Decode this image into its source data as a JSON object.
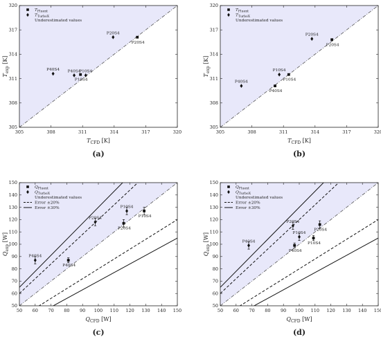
{
  "chart_data": [
    {
      "id": "a",
      "type": "scatter",
      "panel_label": "(a)",
      "xlabel": "T_CFD [K]",
      "ylabel": "T_exp [K]",
      "xlim": [
        305,
        320
      ],
      "ylim": [
        305,
        320
      ],
      "xticks": [
        "305",
        "308",
        "311",
        "314",
        "317",
        "320"
      ],
      "yticks": [
        "305",
        "308",
        "311",
        "314",
        "317",
        "320"
      ],
      "underestimated_region": true,
      "legend": {
        "position": "top-left",
        "entries": [
          {
            "marker": "square",
            "label": "T_Fluent"
          },
          {
            "marker": "diamond",
            "label": "T_TurboX"
          },
          {
            "marker": "shade",
            "label": "Underestimated values"
          }
        ]
      },
      "series": [
        {
          "name": "T_Fluent",
          "marker": "square",
          "points": [
            {
              "label": "P10S4",
              "x": 310.8,
              "y": 311.5
            },
            {
              "label": "P20S4",
              "x": 316.2,
              "y": 316.1
            }
          ]
        },
        {
          "name": "T_TurboX",
          "marker": "diamond",
          "points": [
            {
              "label": "P40S4",
              "x": 308.2,
              "y": 311.6
            },
            {
              "label": "P40S4",
              "x": 310.2,
              "y": 311.4
            },
            {
              "label": "P10S4",
              "x": 311.3,
              "y": 311.4
            },
            {
              "label": "P20S4",
              "x": 313.9,
              "y": 316.1
            }
          ]
        }
      ],
      "error_lines": []
    },
    {
      "id": "b",
      "type": "scatter",
      "panel_label": "(b)",
      "xlabel": "T_CFD [K]",
      "ylabel": "T_exp [K]",
      "xlim": [
        305,
        320
      ],
      "ylim": [
        305,
        320
      ],
      "xticks": [
        "305",
        "308",
        "311",
        "314",
        "317",
        "320"
      ],
      "yticks": [
        "305",
        "308",
        "311",
        "314",
        "317",
        "320"
      ],
      "underestimated_region": true,
      "legend": {
        "position": "top-left",
        "entries": [
          {
            "marker": "square",
            "label": "T_Fluent"
          },
          {
            "marker": "diamond",
            "label": "T_TurboX"
          },
          {
            "marker": "shade",
            "label": "Underestimated values"
          }
        ]
      },
      "series": [
        {
          "name": "T_Fluent",
          "marker": "square",
          "points": [
            {
              "label": "P40S4",
              "x": 310.2,
              "y": 310.1
            },
            {
              "label": "P10S4",
              "x": 311.5,
              "y": 311.5
            },
            {
              "label": "P20S4",
              "x": 315.6,
              "y": 315.8
            }
          ]
        },
        {
          "name": "T_TurboX",
          "marker": "diamond",
          "points": [
            {
              "label": "P40S4",
              "x": 307.0,
              "y": 310.1
            },
            {
              "label": "P10S4",
              "x": 310.6,
              "y": 311.5
            },
            {
              "label": "P20S4",
              "x": 313.7,
              "y": 315.9
            }
          ]
        }
      ],
      "error_lines": []
    },
    {
      "id": "c",
      "type": "scatter",
      "panel_label": "(c)",
      "xlabel": "Q_CFD [W]",
      "ylabel": "Q_exp [W]",
      "xlim": [
        50,
        150
      ],
      "ylim": [
        50,
        150
      ],
      "xticks": [
        "50",
        "60",
        "70",
        "80",
        "90",
        "100",
        "110",
        "120",
        "130",
        "140",
        "150"
      ],
      "yticks": [
        "50",
        "60",
        "70",
        "80",
        "90",
        "100",
        "110",
        "120",
        "130",
        "140",
        "150"
      ],
      "underestimated_region": true,
      "legend": {
        "position": "top-left",
        "entries": [
          {
            "marker": "square",
            "label": "Q_Fluent"
          },
          {
            "marker": "diamond",
            "label": "Q_TurboX"
          },
          {
            "marker": "shade",
            "label": "Underestimated values"
          },
          {
            "marker": "dashed",
            "label": "Error ±20%"
          },
          {
            "marker": "solid",
            "label": "Error ±30%"
          }
        ]
      },
      "series": [
        {
          "name": "Q_Fluent",
          "marker": "square",
          "points": [
            {
              "label": "P40S4",
              "x": 81,
              "y": 87,
              "err": 2
            },
            {
              "label": "P20S4",
              "x": 116,
              "y": 117,
              "err": 3
            },
            {
              "label": "P10S4",
              "x": 129,
              "y": 127,
              "err": 3
            }
          ]
        },
        {
          "name": "Q_TurboX",
          "marker": "diamond",
          "points": [
            {
              "label": "P40S4",
              "x": 60,
              "y": 87,
              "err": 3
            },
            {
              "label": "P20S4",
              "x": 98,
              "y": 118,
              "err": 3
            },
            {
              "label": "P10S4",
              "x": 118,
              "y": 127,
              "err": 3
            }
          ]
        }
      ],
      "error_lines": [
        {
          "style": "dashed",
          "factor": 1.2
        },
        {
          "style": "dashed",
          "factor": 0.8
        },
        {
          "style": "solid",
          "factor": 1.3
        },
        {
          "style": "solid",
          "factor": 0.7
        }
      ]
    },
    {
      "id": "d",
      "type": "scatter",
      "panel_label": "(d)",
      "xlabel": "Q_CFD [W]",
      "ylabel": "Q_exp [W]",
      "xlim": [
        50,
        150
      ],
      "ylim": [
        50,
        150
      ],
      "xticks": [
        "50",
        "60",
        "70",
        "80",
        "90",
        "100",
        "110",
        "120",
        "130",
        "140",
        "150"
      ],
      "yticks": [
        "50",
        "60",
        "70",
        "80",
        "90",
        "100",
        "110",
        "120",
        "130",
        "140",
        "150"
      ],
      "underestimated_region": true,
      "legend": {
        "position": "top-left",
        "entries": [
          {
            "marker": "square",
            "label": "Q_Fluent"
          },
          {
            "marker": "diamond",
            "label": "Q_TurboX"
          },
          {
            "marker": "shade",
            "label": "Underestimated values"
          },
          {
            "marker": "dashed",
            "label": "Error ±20%"
          },
          {
            "marker": "solid",
            "label": "Error ±30%"
          }
        ]
      },
      "series": [
        {
          "name": "Q_Fluent",
          "marker": "square",
          "points": [
            {
              "label": "P40S4",
              "x": 97,
              "y": 99,
              "err": 2
            },
            {
              "label": "P10S4",
              "x": 109,
              "y": 105,
              "err": 2
            },
            {
              "label": "P20S4",
              "x": 113,
              "y": 116,
              "err": 3
            }
          ]
        },
        {
          "name": "Q_TurboX",
          "marker": "diamond",
          "points": [
            {
              "label": "P40S4",
              "x": 68,
              "y": 99,
              "err": 3
            },
            {
              "label": "P20S4",
              "x": 96,
              "y": 115,
              "err": 3
            },
            {
              "label": "P10S4",
              "x": 100,
              "y": 106,
              "err": 3
            }
          ]
        }
      ],
      "error_lines": [
        {
          "style": "dashed",
          "factor": 1.2
        },
        {
          "style": "dashed",
          "factor": 0.8
        },
        {
          "style": "solid",
          "factor": 1.3
        },
        {
          "style": "solid",
          "factor": 0.7
        }
      ]
    }
  ],
  "colors": {
    "underestimated_fill": "#e8e8fa",
    "marker": "#111111",
    "axis": "#222222",
    "diagonal": "#555555"
  }
}
